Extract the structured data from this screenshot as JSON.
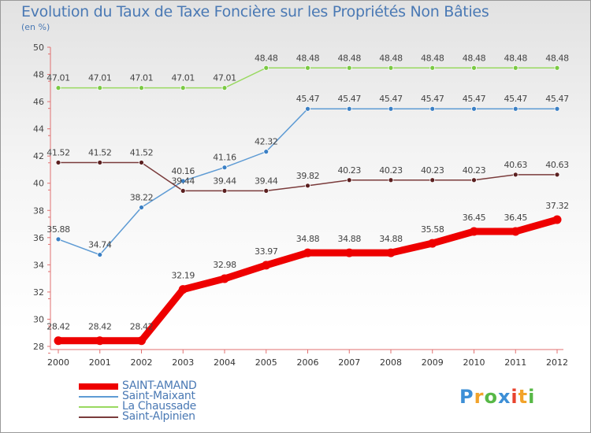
{
  "chart_data": {
    "type": "line",
    "title": "Evolution du Taux de Taxe Foncière sur les Propriétés Non Bâties",
    "ylabel": "(en %)",
    "xlabel": "",
    "ylim": [
      28,
      50
    ],
    "yticks": [
      28,
      30,
      32,
      34,
      36,
      38,
      40,
      42,
      44,
      46,
      48,
      50
    ],
    "categories": [
      "2000",
      "2001",
      "2002",
      "2003",
      "2004",
      "2005",
      "2006",
      "2007",
      "2008",
      "2009",
      "2010",
      "2011",
      "2012"
    ],
    "grid": false,
    "legend_position": "bottom-left",
    "series": [
      {
        "name": "La Chaussade",
        "color": "#99d960",
        "marker": "#7ac943",
        "values": [
          47.01,
          47.01,
          47.01,
          47.01,
          47.01,
          48.48,
          48.48,
          48.48,
          48.48,
          48.48,
          48.48,
          48.48,
          48.48
        ],
        "labels": [
          "47.01",
          "47.01",
          "47.01",
          "47.01",
          "47.01",
          "48.48",
          "48.48",
          "48.48",
          "48.48",
          "48.48",
          "48.48",
          "48.48",
          "48.48"
        ]
      },
      {
        "name": "Saint-Maixant",
        "color": "#5e9bd4",
        "marker": "#3a7fc4",
        "values": [
          35.88,
          34.74,
          38.22,
          40.16,
          41.16,
          42.32,
          45.47,
          45.47,
          45.47,
          45.47,
          45.47,
          45.47,
          45.47
        ],
        "labels": [
          "35.88",
          "34.74",
          "38.22",
          "40.16",
          "41.16",
          "42.32",
          "45.47",
          "45.47",
          "45.47",
          "45.47",
          "45.47",
          "45.47",
          "45.47"
        ]
      },
      {
        "name": "Saint-Alpinien",
        "color": "#7a3b3b",
        "marker": "#5a1f1f",
        "values": [
          41.52,
          41.52,
          41.52,
          39.44,
          39.44,
          39.44,
          39.82,
          40.23,
          40.23,
          40.23,
          40.23,
          40.63,
          40.63
        ],
        "labels": [
          "41.52",
          "41.52",
          "41.52",
          "39.44",
          "39.44",
          "39.44",
          "39.82",
          "40.23",
          "40.23",
          "40.23",
          "40.23",
          "40.63",
          "40.63"
        ]
      },
      {
        "name": "SAINT-AMAND",
        "color": "#ee0000",
        "marker": "#ee0000",
        "values": [
          28.42,
          28.42,
          28.42,
          32.19,
          32.98,
          33.97,
          34.88,
          34.88,
          34.88,
          35.58,
          36.45,
          36.45,
          37.32
        ],
        "labels": [
          "28.42",
          "28.42",
          "28.42",
          "32.19",
          "32.98",
          "33.97",
          "34.88",
          "34.88",
          "34.88",
          "35.58",
          "36.45",
          "36.45",
          "37.32"
        ]
      }
    ],
    "legend": [
      {
        "name": "SAINT-AMAND",
        "color": "#ee0000",
        "thick": true
      },
      {
        "name": "Saint-Maixant",
        "color": "#5e9bd4",
        "thick": false
      },
      {
        "name": "La Chaussade",
        "color": "#99d960",
        "thick": false
      },
      {
        "name": "Saint-Alpinien",
        "color": "#7a3b3b",
        "thick": false
      }
    ]
  },
  "logo": {
    "letters": [
      "P",
      "r",
      "o",
      "x",
      "i",
      "t",
      "i"
    ],
    "colors": [
      "#3d8fd6",
      "#f2a32a",
      "#57b846",
      "#3d8fd6",
      "#e8432e",
      "#f2a32a",
      "#57b846"
    ]
  }
}
